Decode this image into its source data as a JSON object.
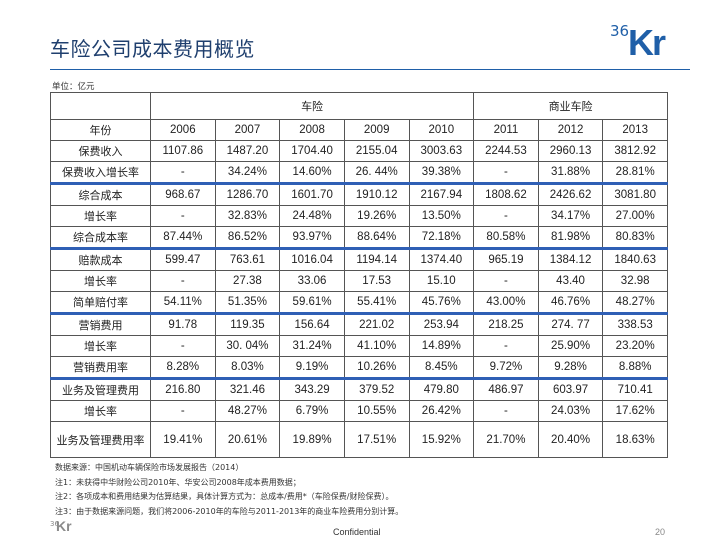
{
  "header": {
    "title": "车险公司成本费用概览",
    "logo_number": "36",
    "logo_text": "Kr",
    "brand_color": "#1f5fa8",
    "unit": "单位：亿元"
  },
  "table": {
    "group_headers": [
      "车险",
      "商业车险"
    ],
    "year_label": "年份",
    "years": [
      "2006",
      "2007",
      "2008",
      "2009",
      "2010",
      "2011",
      "2012",
      "2013"
    ],
    "rows": [
      {
        "label": "保费收入",
        "values": [
          "1107.86",
          "1487.20",
          "1704.40",
          "2155.04",
          "3003.63",
          "2244.53",
          "2960.13",
          "3812.92"
        ]
      },
      {
        "label": "保费收入增长率",
        "values": [
          "-",
          "34.24%",
          "14.60%",
          "26. 44%",
          "39.38%",
          "-",
          "31.88%",
          "28.81%"
        ]
      },
      {
        "label": "综合成本",
        "values": [
          "968.67",
          "1286.70",
          "1601.70",
          "1910.12",
          "2167.94",
          "1808.62",
          "2426.62",
          "3081.80"
        ]
      },
      {
        "label": "增长率",
        "values": [
          "-",
          "32.83%",
          "24.48%",
          "19.26%",
          "13.50%",
          "-",
          "34.17%",
          "27.00%"
        ]
      },
      {
        "label": "综合成本率",
        "values": [
          "87.44%",
          "86.52%",
          "93.97%",
          "88.64%",
          "72.18%",
          "80.58%",
          "81.98%",
          "80.83%"
        ]
      },
      {
        "label": "赔款成本",
        "values": [
          "599.47",
          "763.61",
          "1016.04",
          "1194.14",
          "1374.40",
          "965.19",
          "1384.12",
          "1840.63"
        ]
      },
      {
        "label": "增长率",
        "values": [
          "-",
          "27.38",
          "33.06",
          "17.53",
          "15.10",
          "-",
          "43.40",
          "32.98"
        ]
      },
      {
        "label": "简单赔付率",
        "values": [
          "54.11%",
          "51.35%",
          "59.61%",
          "55.41%",
          "45.76%",
          "43.00%",
          "46.76%",
          "48.27%"
        ]
      },
      {
        "label": "营销费用",
        "values": [
          "91.78",
          "119.35",
          "156.64",
          "221.02",
          "253.94",
          "218.25",
          "274. 77",
          "338.53"
        ]
      },
      {
        "label": "增长率",
        "values": [
          "-",
          "30. 04%",
          "31.24%",
          "41.10%",
          "14.89%",
          "-",
          "25.90%",
          "23.20%"
        ]
      },
      {
        "label": "营销费用率",
        "values": [
          "8.28%",
          "8.03%",
          "9.19%",
          "10.26%",
          "8.45%",
          "9.72%",
          "9.28%",
          "8.88%"
        ]
      },
      {
        "label": "业务及管理费用",
        "values": [
          "216.80",
          "321.46",
          "343.29",
          "379.52",
          "479.80",
          "486.97",
          "603.97",
          "710.41"
        ]
      },
      {
        "label": "增长率",
        "values": [
          "-",
          "48.27%",
          "6.79%",
          "10.55%",
          "26.42%",
          "-",
          "24.03%",
          "17.62%"
        ]
      },
      {
        "label": "业务及管理费用率",
        "values": [
          "19.41%",
          "20.61%",
          "19.89%",
          "17.51%",
          "15.92%",
          "21.70%",
          "20.40%",
          "18.63%"
        ]
      }
    ],
    "separator_color": "#2f5fb5"
  },
  "notes": [
    "数据来源：中国机动车辆保险市场发展报告（2014）",
    "注1：未获得中华财险公司2010年、华安公司2008年成本费用数据；",
    "注2：各项成本和费用结果为估算结果，具体计算方式为：总成本/费用*（车险保费/财险保费）。",
    "注3：由于数据来源问题，我们将2006-2010年的车险与2011-2013年的商业车险费用分别计算。"
  ],
  "footer": {
    "logo_number": "36",
    "logo_text": "Kr",
    "confidential": "Confidential",
    "page_number": "20"
  }
}
